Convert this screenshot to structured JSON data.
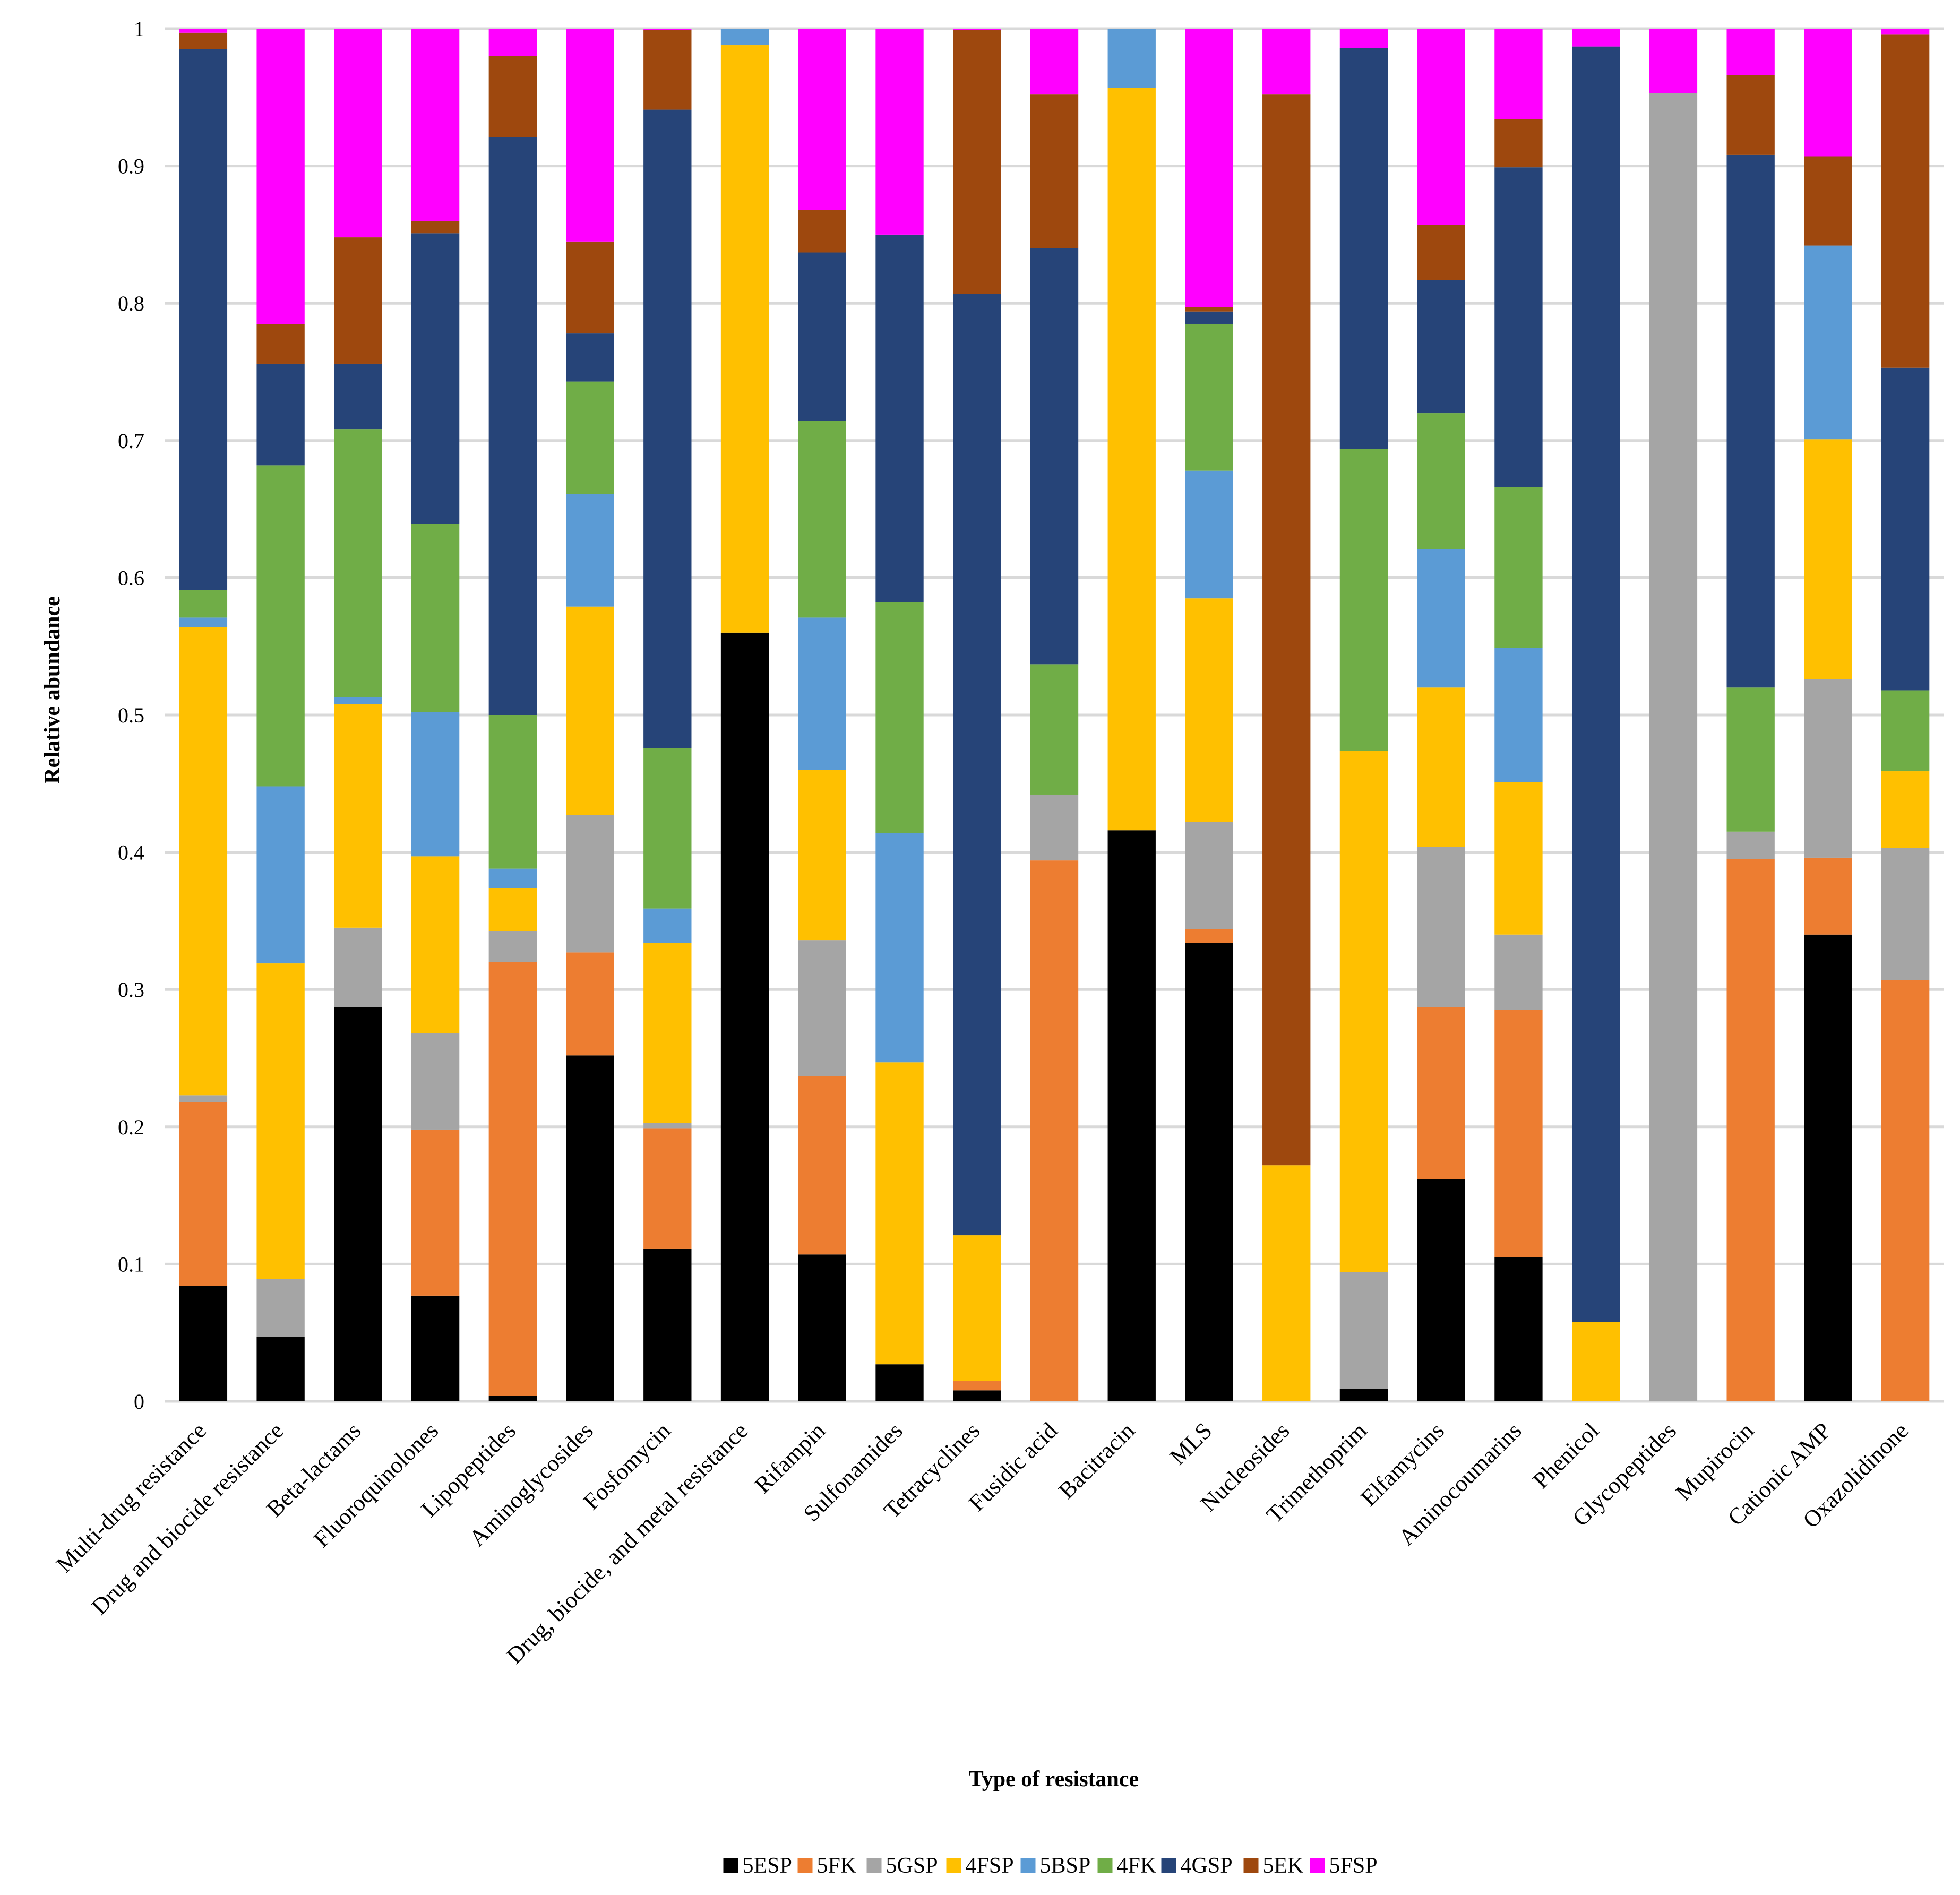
{
  "chart_data": {
    "type": "bar",
    "stacked": true,
    "title": "",
    "xlabel": "Type of resistance",
    "ylabel": "Relative abundance",
    "ylim": [
      0,
      1
    ],
    "yticks": [
      "0",
      "0.1",
      "0.2",
      "0.3",
      "0.4",
      "0.5",
      "0.6",
      "0.7",
      "0.8",
      "0.9",
      "1"
    ],
    "grid": true,
    "legend_position": "bottom",
    "categories": [
      "Multi-drug resistance",
      "Drug and biocide resistance",
      "Beta-lactams",
      "Fluoroquinolones",
      "Lipopeptides",
      "Aminoglycosides",
      "Fosfomycin",
      "Drug, biocide, and metal resistance",
      "Rifampin",
      "Sulfonamides",
      "Tetracyclines",
      "Fusidic acid",
      "Bacitracin",
      "MLS",
      "Nucleosides",
      "Trimethoprim",
      "Elfamycins",
      "Aminocoumarins",
      "Phenicol",
      "Glycopeptides",
      "Mupirocin",
      "Cationic AMP",
      "Oxazolidinone"
    ],
    "series": [
      {
        "name": "5ESP",
        "color": "#000000",
        "values": [
          0.084,
          0.047,
          0.287,
          0.077,
          0.004,
          0.252,
          0.111,
          0.56,
          0.107,
          0.027,
          0.008,
          0.0,
          0.416,
          0.334,
          0.0,
          0.009,
          0.162,
          0.105,
          0.0,
          0.0,
          0.0,
          0.34,
          0.0
        ]
      },
      {
        "name": "5FK",
        "color": "#ED7D31",
        "values": [
          0.134,
          0.0,
          0.0,
          0.121,
          0.316,
          0.075,
          0.088,
          0.0,
          0.13,
          0.0,
          0.007,
          0.394,
          0.0,
          0.01,
          0.0,
          0.0,
          0.125,
          0.18,
          0.0,
          0.0,
          0.395,
          0.056,
          0.307
        ]
      },
      {
        "name": "5GSP",
        "color": "#A5A5A5",
        "values": [
          0.005,
          0.042,
          0.058,
          0.07,
          0.023,
          0.1,
          0.004,
          0.0,
          0.099,
          0.0,
          0.0,
          0.048,
          0.0,
          0.078,
          0.0,
          0.085,
          0.117,
          0.055,
          0.0,
          0.953,
          0.02,
          0.13,
          0.096
        ]
      },
      {
        "name": "4FSP",
        "color": "#FFC000",
        "values": [
          0.341,
          0.23,
          0.163,
          0.129,
          0.031,
          0.152,
          0.131,
          0.428,
          0.124,
          0.22,
          0.106,
          0.0,
          0.541,
          0.163,
          0.172,
          0.38,
          0.116,
          0.111,
          0.058,
          0.0,
          0.0,
          0.175,
          0.056
        ]
      },
      {
        "name": "5BSP",
        "color": "#5B9BD5",
        "values": [
          0.007,
          0.129,
          0.005,
          0.105,
          0.014,
          0.082,
          0.025,
          0.012,
          0.111,
          0.167,
          0.0,
          0.0,
          0.043,
          0.093,
          0.0,
          0.0,
          0.101,
          0.098,
          0.0,
          0.0,
          0.0,
          0.141,
          0.0
        ]
      },
      {
        "name": "4FK",
        "color": "#70AD47",
        "values": [
          0.02,
          0.234,
          0.195,
          0.137,
          0.112,
          0.082,
          0.117,
          0.0,
          0.143,
          0.168,
          0.0,
          0.095,
          0.0,
          0.107,
          0.0,
          0.22,
          0.099,
          0.117,
          0.0,
          0.0,
          0.105,
          0.0,
          0.059
        ]
      },
      {
        "name": "4GSP",
        "color": "#264478",
        "values": [
          0.394,
          0.074,
          0.048,
          0.212,
          0.421,
          0.035,
          0.465,
          0.0,
          0.123,
          0.268,
          0.686,
          0.303,
          0.0,
          0.009,
          0.0,
          0.292,
          0.097,
          0.233,
          0.929,
          0.0,
          0.388,
          0.0,
          0.235
        ]
      },
      {
        "name": "5EK",
        "color": "#9E480E",
        "values": [
          0.012,
          0.029,
          0.092,
          0.009,
          0.059,
          0.067,
          0.058,
          0.0,
          0.031,
          0.0,
          0.192,
          0.112,
          0.0,
          0.003,
          0.78,
          0.0,
          0.04,
          0.035,
          0.0,
          0.0,
          0.058,
          0.065,
          0.243
        ]
      },
      {
        "name": "5FSP",
        "color": "#FF00FF",
        "values": [
          0.003,
          0.215,
          0.152,
          0.14,
          0.02,
          0.155,
          0.001,
          0.0,
          0.132,
          0.15,
          0.001,
          0.048,
          0.0,
          0.203,
          0.048,
          0.014,
          0.143,
          0.066,
          0.013,
          0.047,
          0.034,
          0.093,
          0.004
        ]
      }
    ]
  }
}
